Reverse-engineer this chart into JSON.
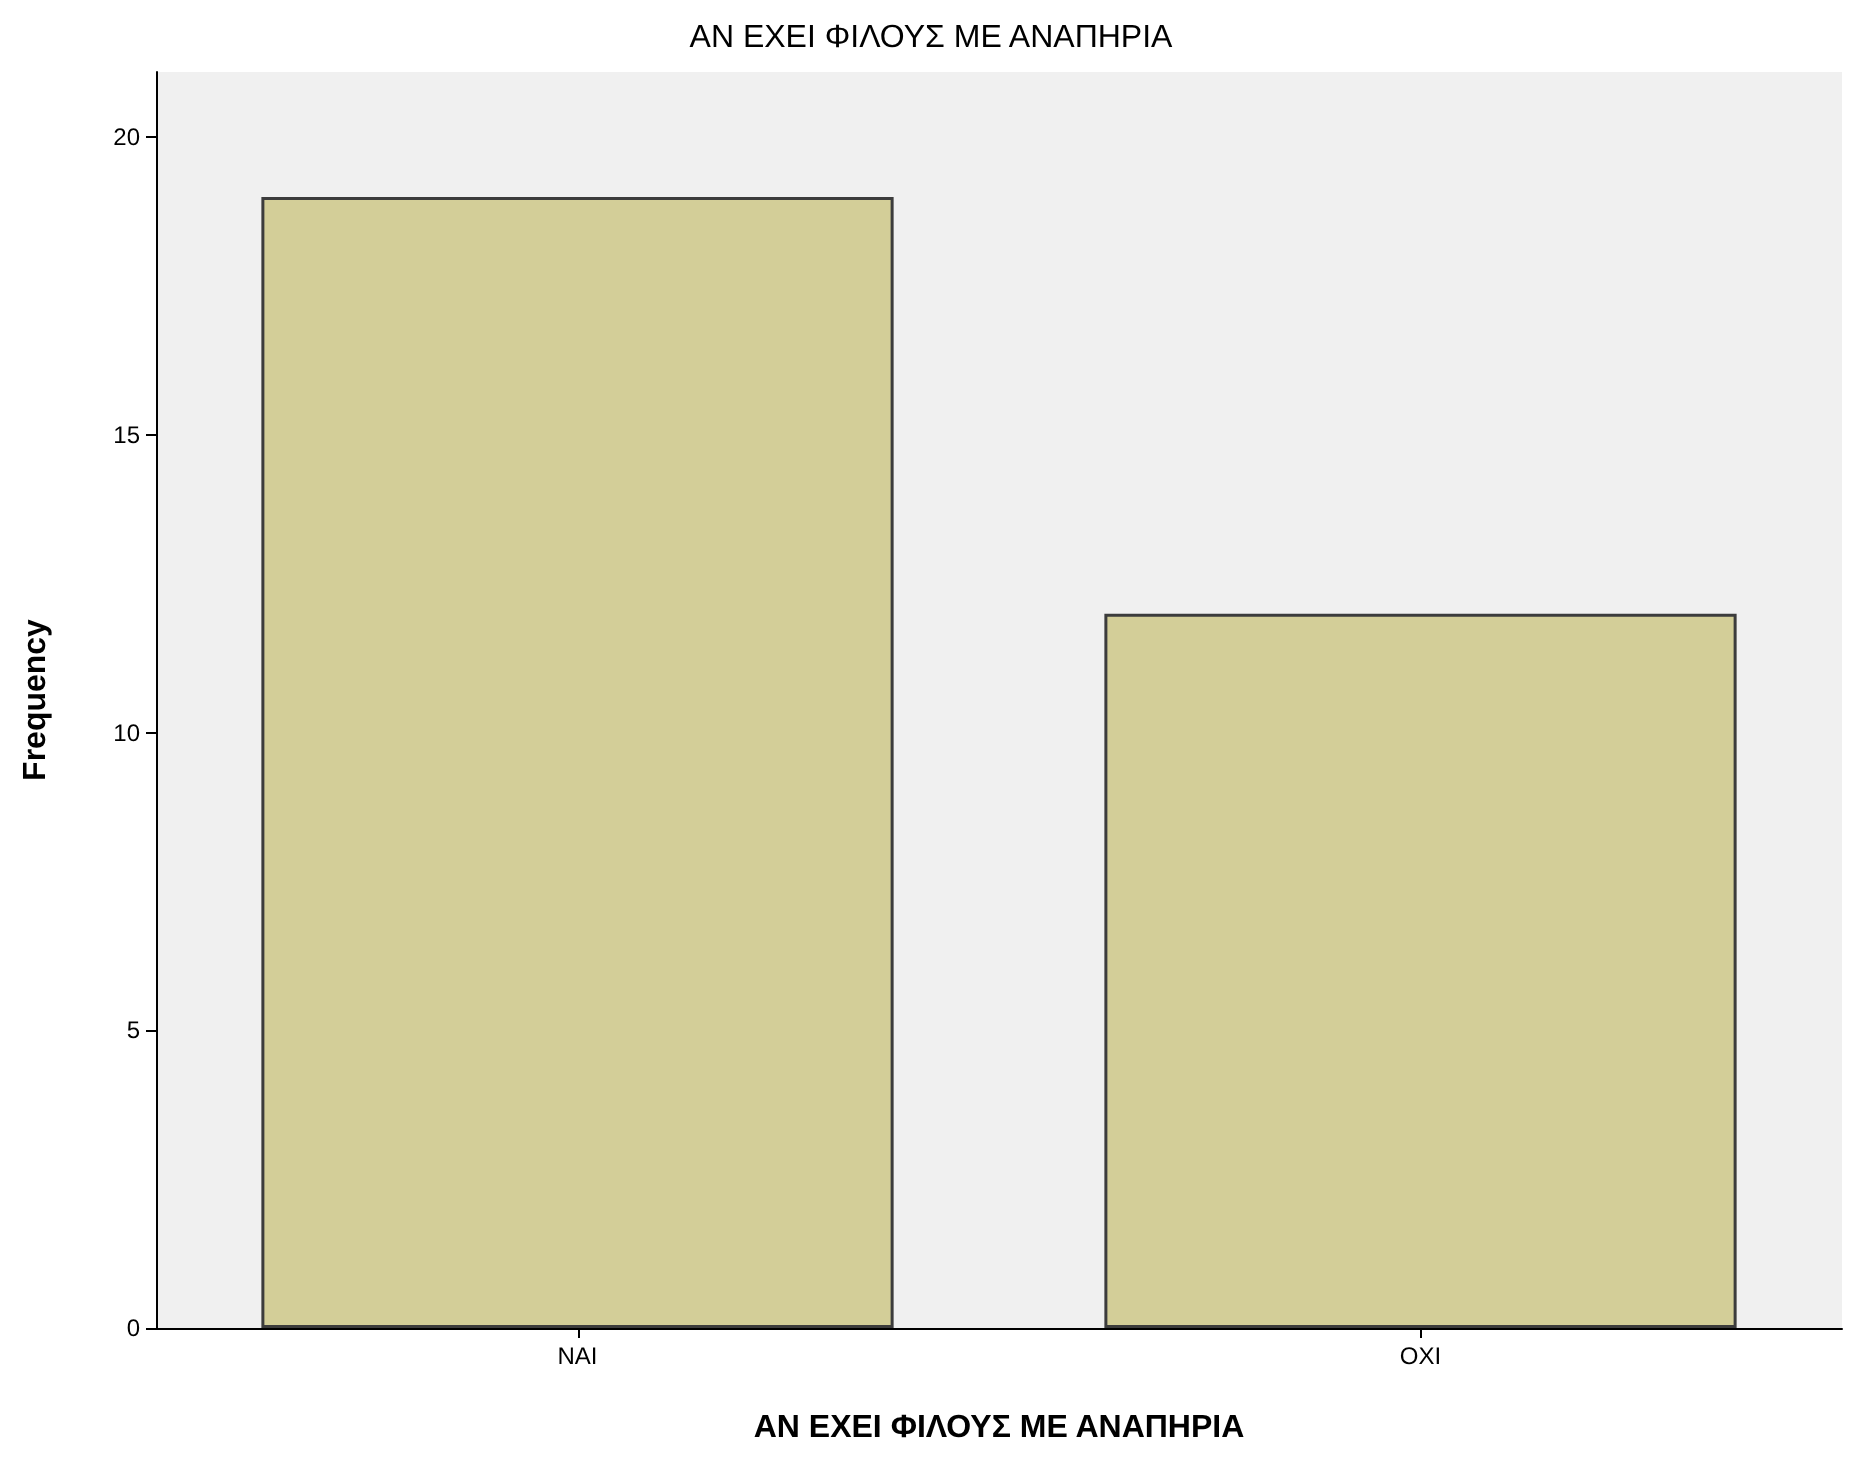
{
  "chart_data": {
    "type": "bar",
    "title": "ΑΝ ΕΧΕΙ ΦΙΛΟΥΣ ΜΕ ΑΝΑΠΗΡΙΑ",
    "xlabel": "ΑΝ ΕΧΕΙ ΦΙΛΟΥΣ ΜΕ ΑΝΑΠΗΡΙΑ",
    "ylabel": "Frequency",
    "categories": [
      "ΝΑΙ",
      "ΟΧΙ"
    ],
    "values": [
      19,
      12
    ],
    "color": "#d3ce98",
    "ylim": [
      0,
      21.1
    ],
    "yticks": [
      0,
      5,
      10,
      15,
      20
    ],
    "grid": false
  }
}
